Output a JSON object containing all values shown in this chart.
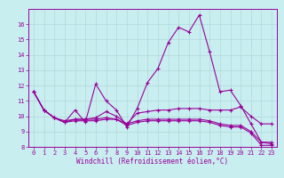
{
  "background_color": "#c8eef0",
  "line_color": "#990099",
  "grid_color": "#b0d8da",
  "xlabel": "Windchill (Refroidissement éolien,°C)",
  "xlabel_color": "#990099",
  "tick_color": "#990099",
  "xlim": [
    -0.5,
    23.5
  ],
  "ylim": [
    8,
    17
  ],
  "yticks": [
    8,
    9,
    10,
    11,
    12,
    13,
    14,
    15,
    16
  ],
  "xticks": [
    0,
    1,
    2,
    3,
    4,
    5,
    6,
    7,
    8,
    9,
    10,
    11,
    12,
    13,
    14,
    15,
    16,
    17,
    18,
    19,
    20,
    21,
    22,
    23
  ],
  "line1_x": [
    0,
    1,
    2,
    3,
    4,
    5,
    6,
    7,
    8,
    9,
    10,
    11,
    12,
    13,
    14,
    15,
    16,
    17,
    18,
    19,
    20,
    21,
    22,
    23
  ],
  "line1_y": [
    11.6,
    10.4,
    9.9,
    9.6,
    10.4,
    9.6,
    12.1,
    11.0,
    10.4,
    9.3,
    10.5,
    12.2,
    13.1,
    14.8,
    15.8,
    15.5,
    16.6,
    14.2,
    11.6,
    11.7,
    10.7,
    9.5,
    8.3,
    8.3
  ],
  "line2_x": [
    0,
    1,
    2,
    3,
    4,
    5,
    6,
    7,
    8,
    9,
    10,
    11,
    12,
    13,
    14,
    15,
    16,
    17,
    18,
    19,
    20,
    21,
    22,
    23
  ],
  "line2_y": [
    11.6,
    10.4,
    9.9,
    9.7,
    9.8,
    9.8,
    9.9,
    10.3,
    10.0,
    9.5,
    10.2,
    10.3,
    10.4,
    10.4,
    10.5,
    10.5,
    10.5,
    10.4,
    10.4,
    10.4,
    10.6,
    10.0,
    9.5,
    9.5
  ],
  "line3_x": [
    0,
    1,
    2,
    3,
    4,
    5,
    6,
    7,
    8,
    9,
    10,
    11,
    12,
    13,
    14,
    15,
    16,
    17,
    18,
    19,
    20,
    21,
    22,
    23
  ],
  "line3_y": [
    11.6,
    10.4,
    9.9,
    9.6,
    9.8,
    9.8,
    9.8,
    9.9,
    9.8,
    9.5,
    9.7,
    9.8,
    9.8,
    9.8,
    9.8,
    9.8,
    9.8,
    9.7,
    9.5,
    9.4,
    9.4,
    9.0,
    8.3,
    8.2
  ],
  "line4_x": [
    0,
    1,
    2,
    3,
    4,
    5,
    6,
    7,
    8,
    9,
    10,
    11,
    12,
    13,
    14,
    15,
    16,
    17,
    18,
    19,
    20,
    21,
    22,
    23
  ],
  "line4_y": [
    11.6,
    10.4,
    9.9,
    9.6,
    9.7,
    9.7,
    9.7,
    9.8,
    9.8,
    9.4,
    9.6,
    9.7,
    9.7,
    9.7,
    9.7,
    9.7,
    9.7,
    9.6,
    9.4,
    9.3,
    9.3,
    8.9,
    8.1,
    8.1
  ]
}
